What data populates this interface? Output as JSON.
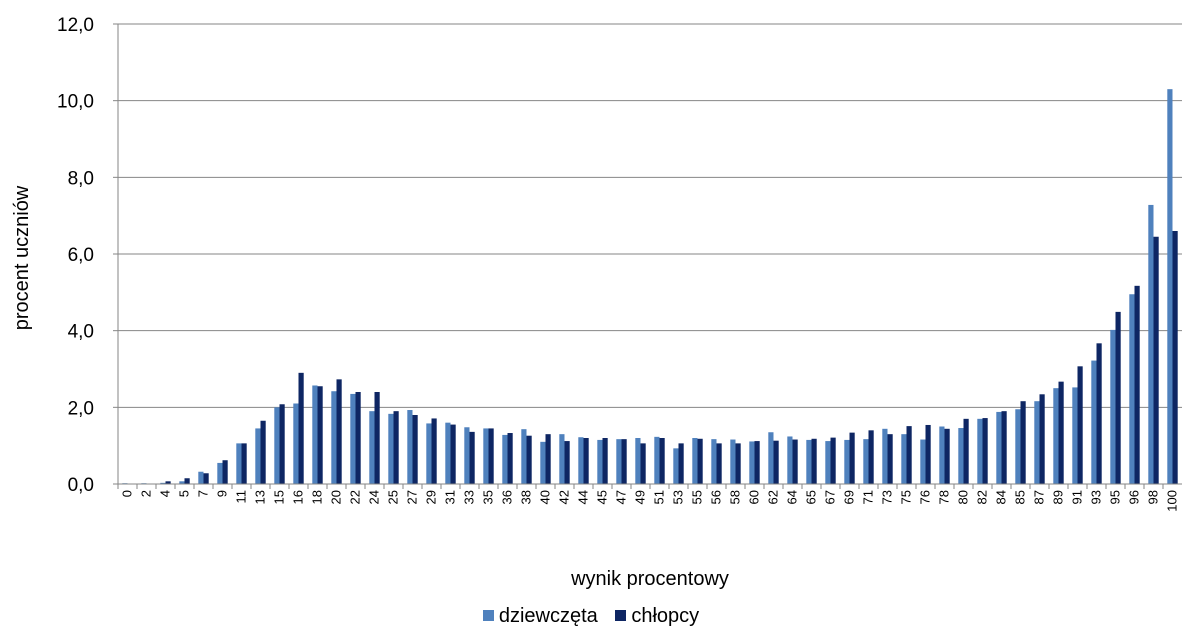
{
  "chart_data": {
    "type": "bar",
    "xlabel": "wynik procentowy",
    "ylabel": "procent uczniów",
    "ylim": [
      0,
      12
    ],
    "yticks": [
      "0,0",
      "2,0",
      "4,0",
      "6,0",
      "8,0",
      "10,0",
      "12,0"
    ],
    "grid": true,
    "legend_position": "bottom",
    "categories": [
      "0",
      "2",
      "4",
      "5",
      "7",
      "9",
      "11",
      "13",
      "15",
      "16",
      "18",
      "20",
      "22",
      "24",
      "25",
      "27",
      "29",
      "31",
      "33",
      "35",
      "36",
      "38",
      "40",
      "42",
      "44",
      "45",
      "47",
      "49",
      "51",
      "53",
      "55",
      "56",
      "58",
      "60",
      "62",
      "64",
      "65",
      "67",
      "69",
      "71",
      "73",
      "75",
      "76",
      "78",
      "80",
      "82",
      "84",
      "85",
      "87",
      "89",
      "91",
      "93",
      "95",
      "96",
      "98",
      "100"
    ],
    "series": [
      {
        "name": "dziewczęta",
        "color": "#4f81bd",
        "values": [
          0.02,
          0.02,
          0.03,
          0.07,
          0.32,
          0.55,
          1.06,
          1.45,
          2.0,
          2.1,
          2.57,
          2.42,
          2.35,
          1.9,
          1.83,
          1.93,
          1.58,
          1.6,
          1.48,
          1.45,
          1.28,
          1.43,
          1.1,
          1.3,
          1.22,
          1.15,
          1.17,
          1.2,
          1.23,
          0.93,
          1.2,
          1.17,
          1.16,
          1.11,
          1.35,
          1.24,
          1.15,
          1.12,
          1.15,
          1.17,
          1.44,
          1.3,
          1.16,
          1.5,
          1.46,
          1.7,
          1.88,
          1.95,
          2.16,
          2.5,
          2.52,
          3.22,
          4.02,
          4.95,
          7.28,
          10.3
        ]
      },
      {
        "name": "chłopcy",
        "color": "#0e2663",
        "values": [
          0.0,
          0.0,
          0.07,
          0.15,
          0.28,
          0.62,
          1.06,
          1.65,
          2.08,
          2.9,
          2.55,
          2.73,
          2.4,
          2.4,
          1.9,
          1.8,
          1.71,
          1.55,
          1.36,
          1.45,
          1.33,
          1.26,
          1.3,
          1.12,
          1.2,
          1.2,
          1.17,
          1.06,
          1.2,
          1.06,
          1.18,
          1.06,
          1.06,
          1.12,
          1.13,
          1.16,
          1.18,
          1.21,
          1.34,
          1.4,
          1.3,
          1.51,
          1.54,
          1.44,
          1.7,
          1.72,
          1.9,
          2.16,
          2.34,
          2.67,
          3.07,
          3.67,
          4.49,
          5.17,
          6.45,
          6.6
        ]
      }
    ]
  }
}
